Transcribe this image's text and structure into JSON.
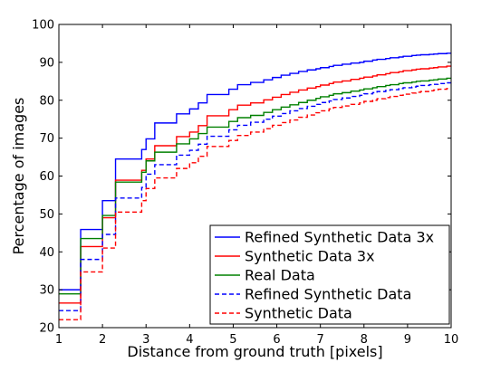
{
  "chart_data": {
    "type": "line",
    "title": "",
    "xlabel": "Distance from ground truth [pixels]",
    "ylabel": "Percentage of images",
    "xlim": [
      1,
      10
    ],
    "ylim": [
      20,
      100
    ],
    "xticks": [
      1,
      2,
      3,
      4,
      5,
      6,
      7,
      8,
      9,
      10
    ],
    "yticks": [
      20,
      30,
      40,
      50,
      60,
      70,
      80,
      90,
      100
    ],
    "grid": false,
    "legend_position": "lower-right",
    "series": [
      {
        "name": "Refined Synthetic Data 3x",
        "color": "#0000ff",
        "dashed": false,
        "x": [
          1,
          1.1,
          1.2,
          1.3,
          1.4,
          1.5,
          1.6,
          1.7,
          1.8,
          1.9,
          2,
          2.1,
          2.2,
          2.3,
          2.4,
          2.5,
          2.6,
          2.7,
          2.8,
          2.9,
          3,
          3.1,
          3.2,
          3.3,
          3.4,
          3.5,
          3.6,
          3.7,
          3.8,
          3.9,
          4,
          4.1,
          4.2,
          4.3,
          4.4,
          4.5,
          4.6,
          4.7,
          4.8,
          4.9,
          5,
          5.1,
          5.2,
          5.3,
          5.4,
          5.5,
          5.6,
          5.7,
          5.8,
          5.9,
          6,
          6.1,
          6.2,
          6.3,
          6.4,
          6.5,
          6.6,
          6.7,
          6.8,
          6.9,
          7,
          7.1,
          7.2,
          7.3,
          7.4,
          7.5,
          7.6,
          7.7,
          7.8,
          7.9,
          8,
          8.1,
          8.2,
          8.3,
          8.4,
          8.5,
          8.6,
          8.7,
          8.8,
          8.9,
          9,
          9.1,
          9.2,
          9.3,
          9.4,
          9.5,
          9.6,
          9.7,
          9.8,
          9.9
        ],
        "y": [
          30.0,
          30.0,
          30.0,
          30.0,
          30.0,
          45.9,
          45.9,
          45.9,
          45.9,
          45.9,
          53.5,
          53.5,
          53.5,
          64.5,
          64.5,
          64.5,
          64.5,
          64.5,
          64.5,
          67.0,
          69.8,
          69.8,
          74.0,
          74.0,
          74.0,
          74.0,
          74.0,
          76.4,
          76.4,
          76.4,
          77.7,
          77.7,
          79.3,
          79.3,
          81.5,
          81.5,
          81.5,
          81.5,
          81.5,
          82.9,
          82.9,
          84.1,
          84.1,
          84.1,
          84.7,
          84.7,
          84.7,
          85.4,
          85.4,
          86.0,
          86.0,
          86.6,
          86.6,
          87.1,
          87.1,
          87.6,
          87.6,
          88.0,
          88.0,
          88.3,
          88.6,
          88.6,
          88.9,
          89.2,
          89.2,
          89.5,
          89.5,
          89.8,
          89.8,
          90.0,
          90.3,
          90.3,
          90.6,
          90.8,
          90.8,
          91.0,
          91.2,
          91.2,
          91.4,
          91.6,
          91.6,
          91.8,
          91.9,
          92.0,
          92.0,
          92.1,
          92.2,
          92.3,
          92.3,
          92.4
        ]
      },
      {
        "name": "Synthetic Data 3x",
        "color": "#ff0000",
        "dashed": false,
        "x": [
          1,
          1.1,
          1.2,
          1.3,
          1.4,
          1.5,
          1.6,
          1.7,
          1.8,
          1.9,
          2,
          2.1,
          2.2,
          2.3,
          2.4,
          2.5,
          2.6,
          2.7,
          2.8,
          2.9,
          3,
          3.1,
          3.2,
          3.3,
          3.4,
          3.5,
          3.6,
          3.7,
          3.8,
          3.9,
          4,
          4.1,
          4.2,
          4.3,
          4.4,
          4.5,
          4.6,
          4.7,
          4.8,
          4.9,
          5,
          5.1,
          5.2,
          5.3,
          5.4,
          5.5,
          5.6,
          5.7,
          5.8,
          5.9,
          6,
          6.1,
          6.2,
          6.3,
          6.4,
          6.5,
          6.6,
          6.7,
          6.8,
          6.9,
          7,
          7.1,
          7.2,
          7.3,
          7.4,
          7.5,
          7.6,
          7.7,
          7.8,
          7.9,
          8,
          8.1,
          8.2,
          8.3,
          8.4,
          8.5,
          8.6,
          8.7,
          8.8,
          8.9,
          9,
          9.1,
          9.2,
          9.3,
          9.4,
          9.5,
          9.6,
          9.7,
          9.8,
          9.9
        ],
        "y": [
          26.5,
          26.5,
          26.5,
          26.5,
          26.5,
          41.4,
          41.4,
          41.4,
          41.4,
          41.4,
          49.0,
          49.0,
          49.0,
          58.9,
          58.9,
          58.9,
          58.9,
          58.9,
          58.9,
          61.5,
          64.5,
          64.5,
          68.0,
          68.0,
          68.0,
          68.0,
          68.0,
          70.4,
          70.4,
          70.4,
          71.6,
          71.6,
          73.3,
          73.3,
          75.9,
          75.9,
          75.9,
          75.9,
          75.9,
          77.5,
          77.5,
          78.7,
          78.7,
          78.7,
          79.3,
          79.3,
          79.3,
          80.1,
          80.1,
          80.8,
          80.8,
          81.5,
          81.5,
          82.1,
          82.1,
          82.7,
          82.7,
          83.2,
          83.2,
          83.6,
          84.0,
          84.0,
          84.4,
          84.8,
          84.8,
          85.1,
          85.1,
          85.5,
          85.5,
          85.8,
          86.1,
          86.1,
          86.4,
          86.7,
          86.7,
          87.0,
          87.3,
          87.3,
          87.5,
          87.8,
          87.8,
          88.0,
          88.2,
          88.3,
          88.3,
          88.5,
          88.6,
          88.8,
          88.8,
          89.0
        ]
      },
      {
        "name": "Real Data",
        "color": "#008000",
        "dashed": false,
        "x": [
          1,
          1.1,
          1.2,
          1.3,
          1.4,
          1.5,
          1.6,
          1.7,
          1.8,
          1.9,
          2,
          2.1,
          2.2,
          2.3,
          2.4,
          2.5,
          2.6,
          2.7,
          2.8,
          2.9,
          3,
          3.1,
          3.2,
          3.3,
          3.4,
          3.5,
          3.6,
          3.7,
          3.8,
          3.9,
          4,
          4.1,
          4.2,
          4.3,
          4.4,
          4.5,
          4.6,
          4.7,
          4.8,
          4.9,
          5,
          5.1,
          5.2,
          5.3,
          5.4,
          5.5,
          5.6,
          5.7,
          5.8,
          5.9,
          6,
          6.1,
          6.2,
          6.3,
          6.4,
          6.5,
          6.6,
          6.7,
          6.8,
          6.9,
          7,
          7.1,
          7.2,
          7.3,
          7.4,
          7.5,
          7.6,
          7.7,
          7.8,
          7.9,
          8,
          8.1,
          8.2,
          8.3,
          8.4,
          8.5,
          8.6,
          8.7,
          8.8,
          8.9,
          9,
          9.1,
          9.2,
          9.3,
          9.4,
          9.5,
          9.6,
          9.7,
          9.8,
          9.9
        ],
        "y": [
          28.9,
          28.9,
          28.9,
          28.9,
          28.9,
          43.5,
          43.5,
          43.5,
          43.5,
          43.5,
          49.6,
          49.6,
          49.6,
          58.4,
          58.4,
          58.4,
          58.4,
          58.4,
          58.4,
          61.0,
          64.0,
          64.0,
          66.3,
          66.3,
          66.3,
          66.3,
          66.3,
          68.5,
          68.5,
          68.5,
          69.8,
          69.8,
          71.2,
          71.2,
          72.9,
          72.9,
          72.9,
          72.9,
          72.9,
          74.4,
          74.4,
          75.4,
          75.4,
          75.4,
          76.0,
          76.0,
          76.0,
          76.8,
          76.8,
          77.5,
          77.5,
          78.2,
          78.2,
          78.8,
          78.8,
          79.4,
          79.4,
          80.0,
          80.0,
          80.5,
          80.9,
          80.9,
          81.3,
          81.7,
          81.7,
          82.0,
          82.0,
          82.4,
          82.4,
          82.7,
          83.0,
          83.0,
          83.3,
          83.6,
          83.6,
          83.9,
          84.1,
          84.1,
          84.4,
          84.6,
          84.6,
          84.8,
          85.0,
          85.1,
          85.1,
          85.3,
          85.4,
          85.6,
          85.6,
          85.8
        ]
      },
      {
        "name": "Refined Synthetic Data",
        "color": "#0000ff",
        "dashed": true,
        "x": [
          1,
          1.1,
          1.2,
          1.3,
          1.4,
          1.5,
          1.6,
          1.7,
          1.8,
          1.9,
          2,
          2.1,
          2.2,
          2.3,
          2.4,
          2.5,
          2.6,
          2.7,
          2.8,
          2.9,
          3,
          3.1,
          3.2,
          3.3,
          3.4,
          3.5,
          3.6,
          3.7,
          3.8,
          3.9,
          4,
          4.1,
          4.2,
          4.3,
          4.4,
          4.5,
          4.6,
          4.7,
          4.8,
          4.9,
          5,
          5.1,
          5.2,
          5.3,
          5.4,
          5.5,
          5.6,
          5.7,
          5.8,
          5.9,
          6,
          6.1,
          6.2,
          6.3,
          6.4,
          6.5,
          6.6,
          6.7,
          6.8,
          6.9,
          7,
          7.1,
          7.2,
          7.3,
          7.4,
          7.5,
          7.6,
          7.7,
          7.8,
          7.9,
          8,
          8.1,
          8.2,
          8.3,
          8.4,
          8.5,
          8.6,
          8.7,
          8.8,
          8.9,
          9,
          9.1,
          9.2,
          9.3,
          9.4,
          9.5,
          9.6,
          9.7,
          9.8,
          9.9
        ],
        "y": [
          24.5,
          24.5,
          24.5,
          24.5,
          24.5,
          38.0,
          38.0,
          38.0,
          38.0,
          38.0,
          44.6,
          44.6,
          44.6,
          54.2,
          54.2,
          54.2,
          54.2,
          54.2,
          54.2,
          57.0,
          60.5,
          60.5,
          63.0,
          63.0,
          63.0,
          63.0,
          63.0,
          65.5,
          65.5,
          65.5,
          66.8,
          66.8,
          68.4,
          68.4,
          70.5,
          70.5,
          70.5,
          70.5,
          70.5,
          72.2,
          72.2,
          73.4,
          73.4,
          73.4,
          74.2,
          74.2,
          74.2,
          75.0,
          75.0,
          75.8,
          75.8,
          76.5,
          76.5,
          77.2,
          77.2,
          77.8,
          77.8,
          78.4,
          78.4,
          78.9,
          79.4,
          79.4,
          79.8,
          80.2,
          80.2,
          80.6,
          80.6,
          81.0,
          81.0,
          81.3,
          81.7,
          81.7,
          82.0,
          82.3,
          82.3,
          82.6,
          82.8,
          82.8,
          83.1,
          83.3,
          83.3,
          83.5,
          83.7,
          83.9,
          83.9,
          84.1,
          84.2,
          84.4,
          84.4,
          84.6
        ]
      },
      {
        "name": "Synthetic Data",
        "color": "#ff0000",
        "dashed": true,
        "x": [
          1,
          1.1,
          1.2,
          1.3,
          1.4,
          1.5,
          1.6,
          1.7,
          1.8,
          1.9,
          2,
          2.1,
          2.2,
          2.3,
          2.4,
          2.5,
          2.6,
          2.7,
          2.8,
          2.9,
          3,
          3.1,
          3.2,
          3.3,
          3.4,
          3.5,
          3.6,
          3.7,
          3.8,
          3.9,
          4,
          4.1,
          4.2,
          4.3,
          4.4,
          4.5,
          4.6,
          4.7,
          4.8,
          4.9,
          5,
          5.1,
          5.2,
          5.3,
          5.4,
          5.5,
          5.6,
          5.7,
          5.8,
          5.9,
          6,
          6.1,
          6.2,
          6.3,
          6.4,
          6.5,
          6.6,
          6.7,
          6.8,
          6.9,
          7,
          7.1,
          7.2,
          7.3,
          7.4,
          7.5,
          7.6,
          7.7,
          7.8,
          7.9,
          8,
          8.1,
          8.2,
          8.3,
          8.4,
          8.5,
          8.6,
          8.7,
          8.8,
          8.9,
          9,
          9.1,
          9.2,
          9.3,
          9.4,
          9.5,
          9.6,
          9.7,
          9.8,
          9.9
        ],
        "y": [
          22.1,
          22.1,
          22.1,
          22.1,
          22.1,
          34.7,
          34.7,
          34.7,
          34.7,
          34.7,
          41.0,
          41.0,
          41.0,
          50.5,
          50.5,
          50.5,
          50.5,
          50.5,
          50.5,
          53.5,
          56.7,
          56.7,
          59.5,
          59.5,
          59.5,
          59.5,
          59.5,
          62.0,
          62.0,
          62.0,
          63.5,
          63.5,
          65.2,
          65.2,
          67.8,
          67.8,
          67.8,
          67.8,
          67.8,
          69.4,
          69.4,
          70.7,
          70.7,
          70.7,
          71.6,
          71.6,
          71.6,
          72.5,
          72.5,
          73.4,
          73.4,
          74.1,
          74.1,
          74.8,
          74.8,
          75.5,
          75.5,
          76.1,
          76.1,
          76.7,
          77.2,
          77.2,
          77.7,
          78.1,
          78.1,
          78.5,
          78.5,
          78.9,
          78.9,
          79.3,
          79.7,
          79.7,
          80.0,
          80.4,
          80.4,
          80.7,
          81.0,
          81.0,
          81.3,
          81.6,
          81.6,
          81.9,
          82.1,
          82.3,
          82.3,
          82.5,
          82.7,
          82.9,
          82.9,
          83.1
        ]
      }
    ]
  }
}
